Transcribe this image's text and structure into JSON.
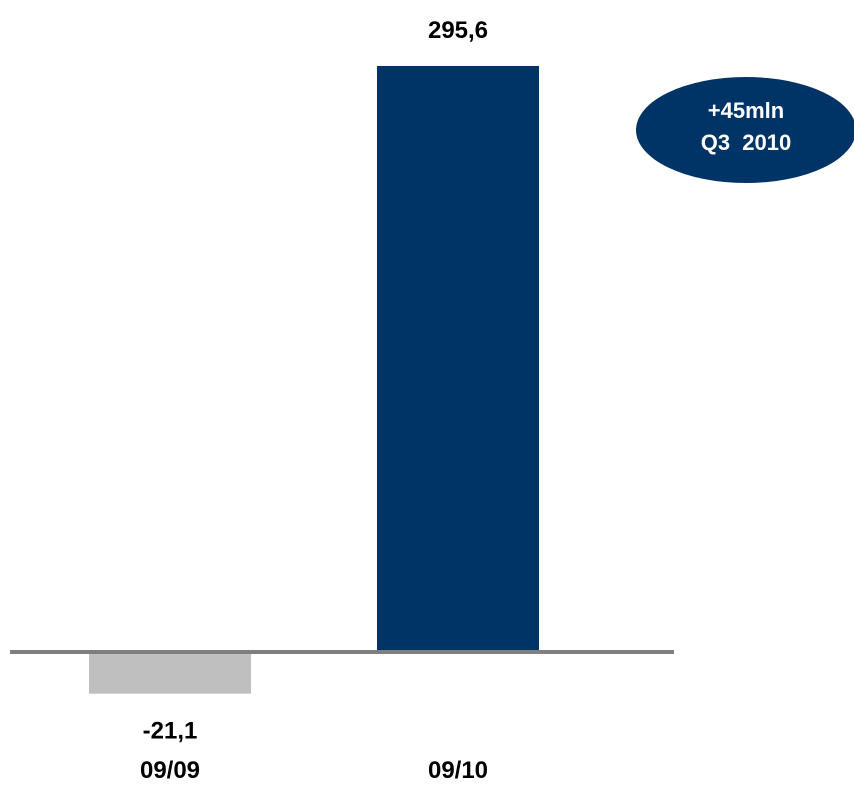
{
  "chart_data": {
    "type": "bar",
    "categories": [
      "09/09",
      "09/10"
    ],
    "values": [
      -21.1,
      295.6
    ],
    "value_labels": [
      "-21,1",
      "295,6"
    ],
    "colors": [
      "#bfbfbf",
      "#003366"
    ],
    "axis_color": "#7f7f7f",
    "title": "",
    "xlabel": "",
    "ylabel": "",
    "grid": false,
    "legend": "none",
    "annotation": {
      "line1": "+45mln",
      "line2": "Q3  2010",
      "color": "#003366",
      "text_color": "#ffffff"
    }
  }
}
